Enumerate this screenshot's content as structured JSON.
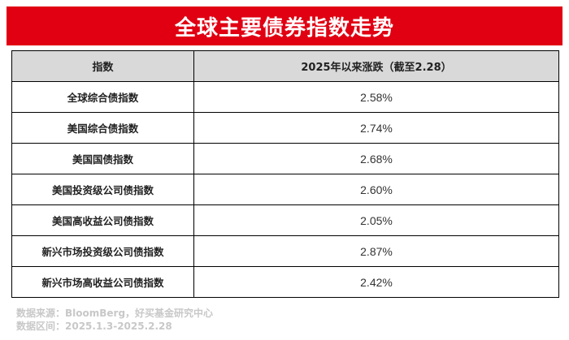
{
  "title": "全球主要债券指数走势",
  "table": {
    "headers": [
      "指数",
      "2025年以来涨跌（截至2.28）"
    ],
    "rows": [
      {
        "name": "全球综合债指数",
        "value": "2.58%"
      },
      {
        "name": "美国综合债指数",
        "value": "2.74%"
      },
      {
        "name": "美国国债指数",
        "value": "2.68%"
      },
      {
        "name": "美国投资级公司债指数",
        "value": "2.60%"
      },
      {
        "name": "美国高收益公司债指数",
        "value": "2.05%"
      },
      {
        "name": "新兴市场投资级公司债指数",
        "value": "2.87%"
      },
      {
        "name": "新兴市场高收益公司债指数",
        "value": "2.42%"
      }
    ]
  },
  "footer": {
    "source": "数据来源：BloomBerg，好买基金研究中心",
    "period": "数据区间：2025.1.3-2025.2.28"
  },
  "colors": {
    "title_bg": "#e00012",
    "header_bg": "#d9d9d9",
    "footer_text": "#c8c8c8"
  }
}
